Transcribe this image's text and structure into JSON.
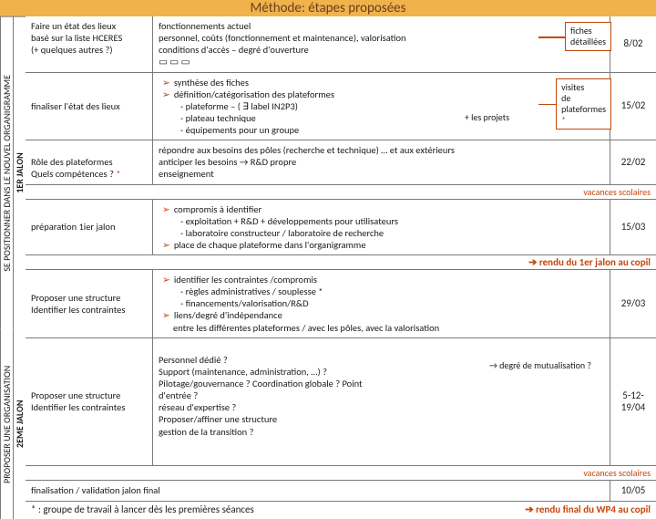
{
  "colors": {
    "title_bg": "#f0b24a",
    "title_fg": "#6a411e",
    "border": "#7a7a7a",
    "accent": "#c4460b",
    "text": "#1a1a1a"
  },
  "title": "Méthode: étapes proposées",
  "jalons": {
    "j1_inner": "1ER JALON",
    "j1_outer": "SE POSITIONNER DANS LE NOUVEL ORGANIGRAMME",
    "j2_inner": "2EME JALON",
    "j2_outer": "PROPOSER UNE ORGANISATION"
  },
  "rows": [
    {
      "left": "Faire un état des lieux\nbasé sur la liste HCERES\n(+ quelques autres ?)",
      "mid_plain": "fonctionnements actuel\npersonnel, coûts (fonctionnement et maintenance), valorisation\nconditions d'accès – degré d'ouverture\n▭ ▭ ▭",
      "callout": "fiches\ndétaillées",
      "date": "8/02"
    },
    {
      "left": "finaliser l'état des lieux",
      "bullets": [
        "synthèse des fiches",
        "définition/catégorisation des plateformes"
      ],
      "subs": [
        "- plateforme – ( ∃ label IN2P3)",
        "- plateau technique",
        "- équipements pour un groupe"
      ],
      "side_note": "+ les projets",
      "callout2": "visites\nde\nplateformes\n*",
      "date": "15/02"
    },
    {
      "left": "Rôle des plateformes\nQuels compétences ? *",
      "mid_plain": "répondre aux besoins des pôles (recherche et technique) … et aux extérieurs\nanticiper les besoins → R&D propre\nenseignement",
      "date": "22/02"
    },
    {
      "left": "préparation 1ier jalon",
      "bullets": [
        "compromis à identifier"
      ],
      "subs": [
        "- exploitation + R&D + développements pour utilisateurs",
        "- laboratoire constructeur / laboratoire de recherche"
      ],
      "bullets2": [
        "place de chaque plateforme dans l'organigramme"
      ],
      "date": "15/03"
    },
    {
      "left": "Proposer une structure\nIdentifier les contraintes",
      "bullets": [
        "identifier les contraintes /compromis"
      ],
      "subs": [
        "- règles administratives / souplesse *",
        "- financements/valorisation/R&D"
      ],
      "bullets2": [
        "liens/degré d'indépendance",
        "entre les différentes plateformes / avec les pôles, avec la valorisation"
      ],
      "date": "29/03"
    },
    {
      "left": "Proposer une structure\nIdentifier les contraintes",
      "mid_plain": "Personnel dédié ?\nSupport (maintenance, administration, …) ?\nPilotage/gouvernance ? Coordination globale ? Point d'entrée ?\nréseau d'expertise ?\nProposer/affiner une structure\ngestion de la transition ?",
      "side_note2": "→ degré de mutualisation ?",
      "date": "5-12-19/04"
    }
  ],
  "vacances": "vacances scolaires",
  "render1": "➔ rendu du 1er jalon au copil",
  "final_row": {
    "left": "finalisation / validation jalon final",
    "date": "10/05"
  },
  "footnote": "* : groupe de travail à lancer dès les premières séances",
  "render2": "➔ rendu final du WP4 au copil"
}
